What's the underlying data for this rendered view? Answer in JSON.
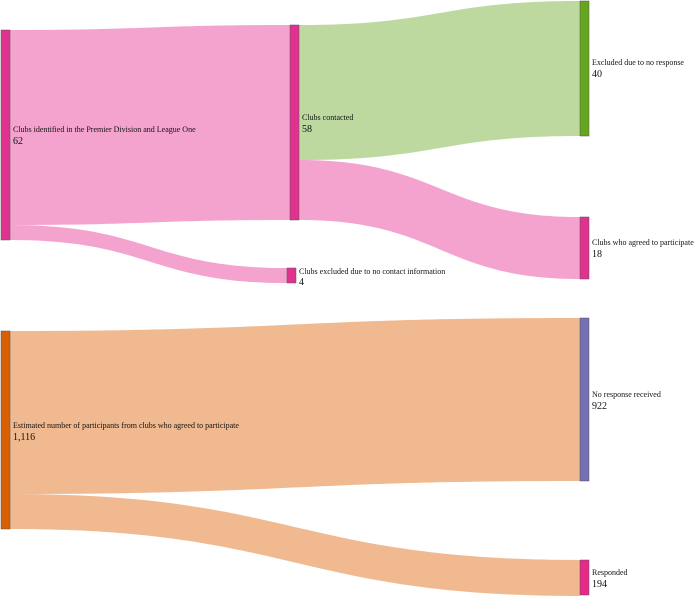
{
  "diagram": {
    "type": "sankey",
    "nodes": {
      "clubs_identified": {
        "label": "Clubs identified in the Premier Division and League One",
        "value": "62",
        "color": "#e0338f"
      },
      "clubs_contacted": {
        "label": "Clubs contacted",
        "value": "58",
        "color": "#e0338f"
      },
      "clubs_excluded_contact": {
        "label": "Clubs excluded due to no contact information",
        "value": "4",
        "color": "#e0338f"
      },
      "excluded_no_response": {
        "label": "Excluded due to no response",
        "value": "40",
        "color": "#66a61e"
      },
      "clubs_agreed": {
        "label": "Clubs who agreed to participate",
        "value": "18",
        "color": "#e0338f"
      },
      "estimated_participants": {
        "label": "Estimated number of participants from clubs who agreed to participate",
        "value": "1,116",
        "color": "#d95f02"
      },
      "no_response_received": {
        "label": "No response received",
        "value": "922",
        "color": "#7570b3"
      },
      "responded": {
        "label": "Responded",
        "value": "194",
        "color": "#e7298a"
      }
    },
    "links": [
      {
        "source": "clubs_identified",
        "target": "clubs_contacted",
        "value": 58,
        "color": "#f4a3cf"
      },
      {
        "source": "clubs_identified",
        "target": "clubs_excluded_contact",
        "value": 4,
        "color": "#f4a3cf"
      },
      {
        "source": "clubs_contacted",
        "target": "excluded_no_response",
        "value": 40,
        "color": "#bdd99f"
      },
      {
        "source": "clubs_contacted",
        "target": "clubs_agreed",
        "value": 18,
        "color": "#f4a3cf"
      },
      {
        "source": "estimated_participants",
        "target": "no_response_received",
        "value": 922,
        "color": "#f0b98f"
      },
      {
        "source": "estimated_participants",
        "target": "responded",
        "value": 194,
        "color": "#f0b98f"
      }
    ]
  }
}
